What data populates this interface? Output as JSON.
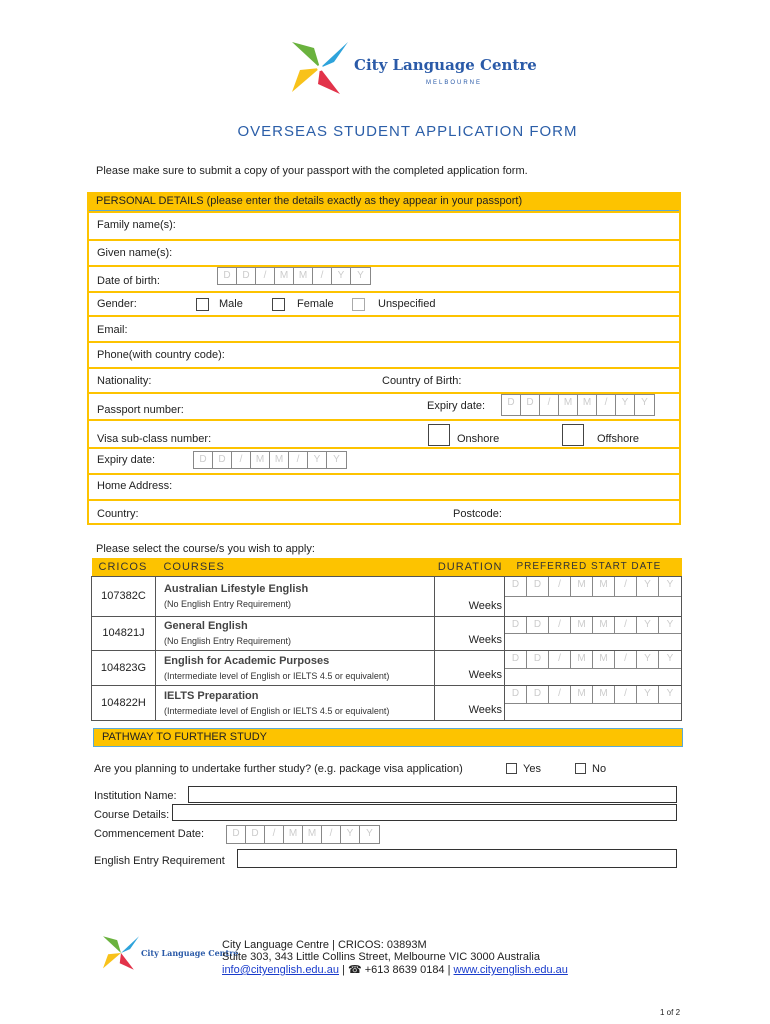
{
  "logo": {
    "name": "City Language Centre",
    "location": "MELBOURNE",
    "colors": [
      "#6ab23e",
      "#2ea3db",
      "#e2334a",
      "#f8c21a"
    ]
  },
  "title": "OVERSEAS STUDENT APPLICATION FORM",
  "intro": "Please make sure to submit a copy of your passport with the completed application form.",
  "personal": {
    "header": "PERSONAL DETAILS (please enter the details exactly as they appear in your passport)",
    "family_name": "Family name(s):",
    "given_name": "Given name(s):",
    "dob": "Date of birth:",
    "gender": "Gender:",
    "male": "Male",
    "female": "Female",
    "unspecified": "Unspecified",
    "email": "Email:",
    "phone": "Phone(with country code):",
    "nationality": "Nationality:",
    "country_of_birth": "Country of Birth:",
    "passport": "Passport number:",
    "expiry": "Expiry date:",
    "visa": "Visa sub-class number:",
    "onshore": "Onshore",
    "offshore": "Offshore",
    "visa_expiry": "Expiry date:",
    "home_address": "Home Address:",
    "country": "Country:",
    "postcode": "Postcode:"
  },
  "date_placeholder": [
    "D",
    "D",
    "/",
    "M",
    "M",
    "/",
    "Y",
    "Y"
  ],
  "courses": {
    "prompt": "Please select the course/s you wish to apply:",
    "headers": {
      "cricos": "CRICOS",
      "courses": "COURSES",
      "duration": "DURATION",
      "start": "PREFERRED START DATE"
    },
    "rows": [
      {
        "code": "107382C",
        "name": "Australian Lifestyle English",
        "req": "(No English Entry Requirement)",
        "duration": "Weeks"
      },
      {
        "code": "104821J",
        "name": "General English",
        "req": "(No English Entry Requirement)",
        "duration": "Weeks"
      },
      {
        "code": "104823G",
        "name": "English for Academic Purposes",
        "req": "(Intermediate level of English or IELTS 4.5 or equivalent)",
        "duration": "Weeks"
      },
      {
        "code": "104822H",
        "name": "IELTS Preparation",
        "req": "(Intermediate level of English or IELTS 4.5 or equivalent)",
        "duration": "Weeks"
      }
    ]
  },
  "pathway": {
    "header": "PATHWAY TO FURTHER STUDY",
    "question": "Are you planning to undertake further study? (e.g. package visa application)",
    "yes": "Yes",
    "no": "No",
    "institution": "Institution Name:",
    "course_details": "Course Details:",
    "commencement": "Commencement Date:",
    "english_req": "English Entry Requirement"
  },
  "footer": {
    "line1": "City Language Centre | CRICOS: 03893M",
    "line2": "Suite 303, 343 Little Collins Street, Melbourne VIC 3000 Australia",
    "email": "info@cityenglish.edu.au",
    "phone": "+613 8639 0184",
    "website": "www.cityenglish.edu.au",
    "sep": "|",
    "phone_icon": "phone-icon"
  },
  "page": "1 of 2"
}
